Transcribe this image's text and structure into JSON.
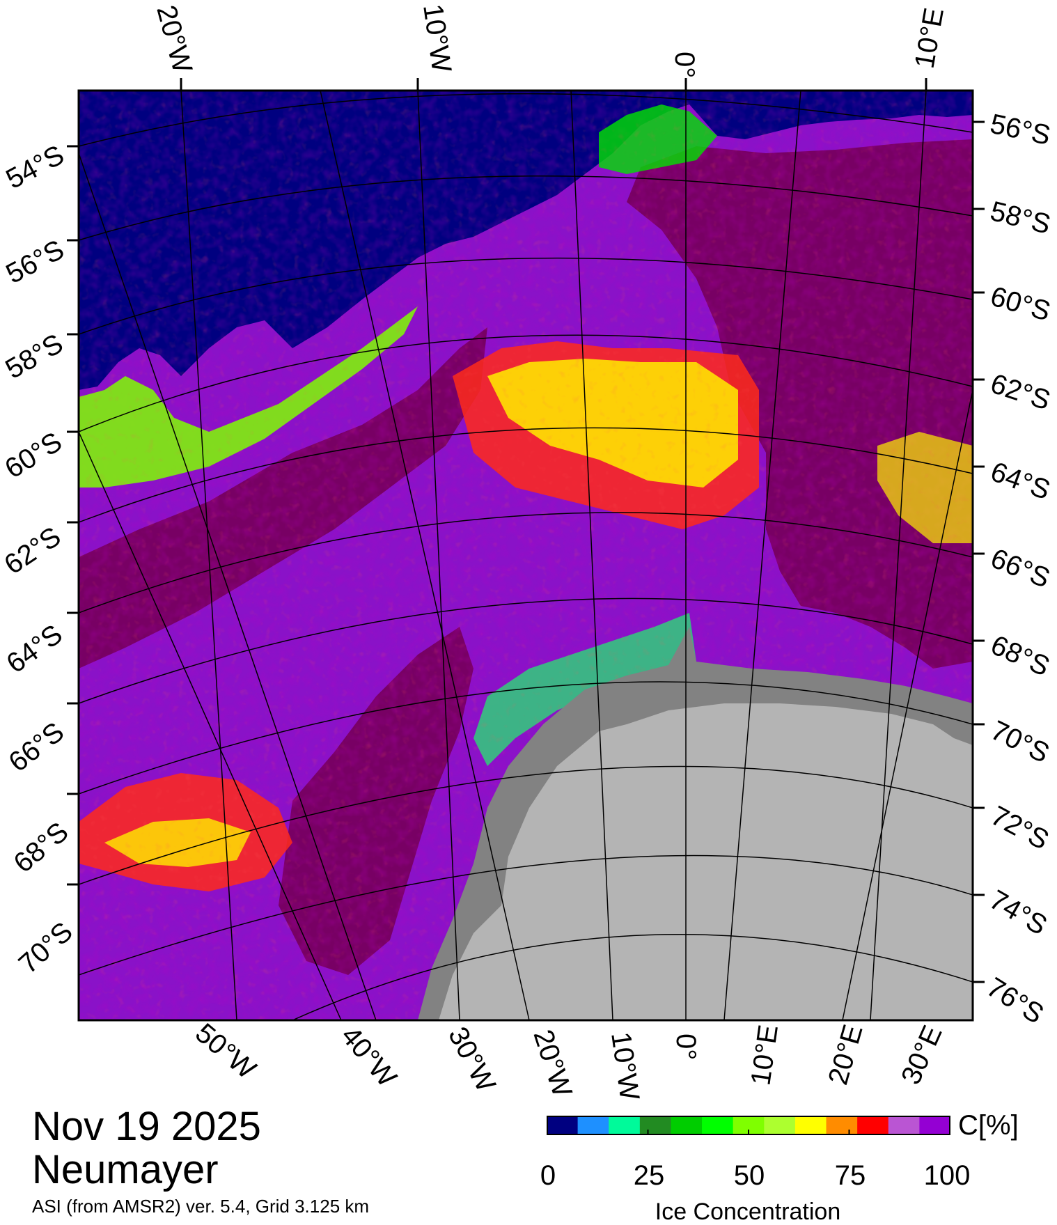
{
  "map": {
    "date": "Nov 19 2025",
    "station": "Neumayer",
    "source": "ASI (from AMSR2) ver. 5.4,  Grid 3.125 km",
    "top_lon_labels": [
      "20°W",
      "10°W",
      "0°",
      "10°E"
    ],
    "bottom_lon_labels": [
      "50°W",
      "40°W",
      "30°W",
      "20°W",
      "10°W",
      "0°",
      "10°E",
      "20°E",
      "30°E"
    ],
    "left_lat_labels": [
      "54°S",
      "56°S",
      "58°S",
      "60°S",
      "62°S",
      "64°S",
      "66°S",
      "68°S",
      "70°S"
    ],
    "right_lat_labels": [
      "56°S",
      "58°S",
      "60°S",
      "62°S",
      "64°S",
      "66°S",
      "68°S",
      "70°S",
      "72°S",
      "74°S",
      "76°S"
    ],
    "colors": {
      "ocean": "#000080",
      "land_ice": "#b4b4b4",
      "ice_shelf": "#828282",
      "high_concentration": "#780064"
    }
  },
  "colorbar": {
    "title": "Ice Concentration",
    "unit": "C[%]",
    "ticks": [
      "0",
      "25",
      "50",
      "75",
      "100"
    ],
    "tick_values": [
      0,
      25,
      50,
      75,
      100
    ],
    "range": [
      0,
      100
    ],
    "colors": [
      "#000080",
      "#1e90ff",
      "#00fa9a",
      "#228b22",
      "#00cd00",
      "#00ff00",
      "#7fff00",
      "#adff2f",
      "#ffff00",
      "#ff8c00",
      "#ff0000",
      "#ba55d3",
      "#9400d3"
    ]
  }
}
